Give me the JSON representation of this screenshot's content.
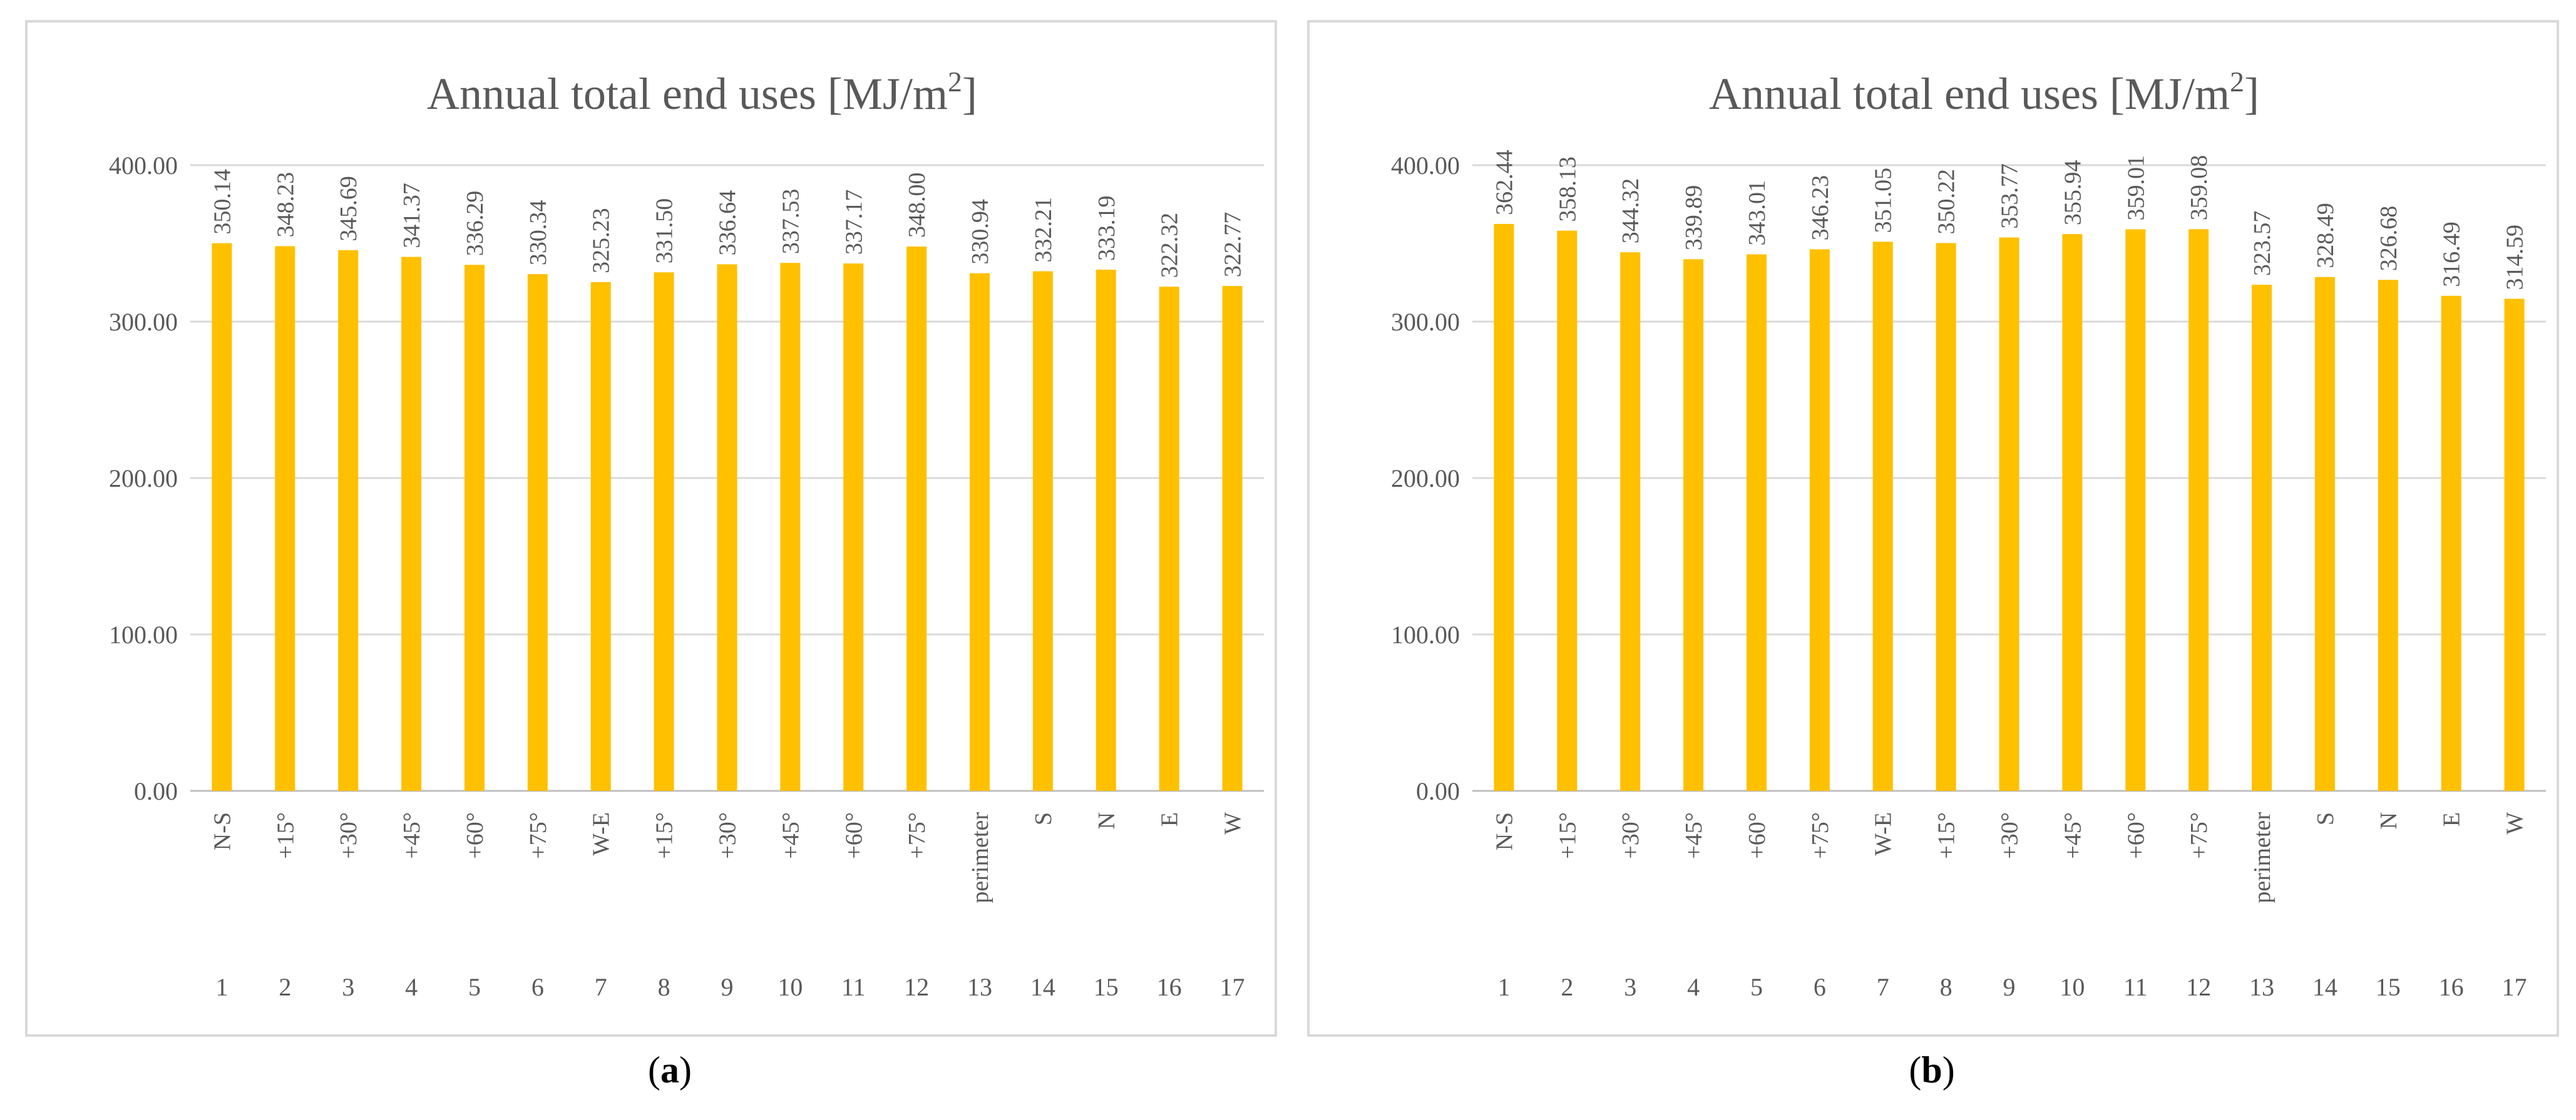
{
  "chart_data": [
    {
      "type": "bar",
      "title": "Annual total end uses [MJ/m",
      "title_sup": "2",
      "title_end": "]",
      "categories": [
        "N-S",
        "+15°",
        "+30°",
        "+45°",
        "+60°",
        "+75°",
        "W-E",
        "+15°",
        "+30°",
        "+45°",
        "+60°",
        "+75°",
        "perimeter",
        "S",
        "N",
        "E",
        "W"
      ],
      "category_index": [
        "1",
        "2",
        "3",
        "4",
        "5",
        "6",
        "7",
        "8",
        "9",
        "10",
        "11",
        "12",
        "13",
        "14",
        "15",
        "16",
        "17"
      ],
      "values": [
        350.14,
        348.23,
        345.69,
        341.37,
        336.29,
        330.34,
        325.23,
        331.5,
        336.64,
        337.53,
        337.17,
        348.0,
        330.94,
        332.21,
        333.19,
        322.32,
        322.77
      ],
      "value_labels": [
        "350.14",
        "348.23",
        "345.69",
        "341.37",
        "336.29",
        "330.34",
        "325.23",
        "331.50",
        "336.64",
        "337.53",
        "337.17",
        "348.00",
        "330.94",
        "332.21",
        "333.19",
        "322.32",
        "322.77"
      ],
      "yticks": [
        0,
        100,
        200,
        300,
        400
      ],
      "ytick_labels": [
        "0.00",
        "100.00",
        "200.00",
        "300.00",
        "400.00"
      ],
      "ylim": [
        0,
        400
      ],
      "xlabel": "",
      "ylabel": "",
      "grid": true,
      "bar_color": "#FFC000",
      "caption_open": "(",
      "caption_letter": "a",
      "caption_close": ")"
    },
    {
      "type": "bar",
      "title": "Annual total end uses [MJ/m",
      "title_sup": "2",
      "title_end": "]",
      "categories": [
        "N-S",
        "+15°",
        "+30°",
        "+45°",
        "+60°",
        "+75°",
        "W-E",
        "+15°",
        "+30°",
        "+45°",
        "+60°",
        "+75°",
        "perimeter",
        "S",
        "N",
        "E",
        "W"
      ],
      "category_index": [
        "1",
        "2",
        "3",
        "4",
        "5",
        "6",
        "7",
        "8",
        "9",
        "10",
        "11",
        "12",
        "13",
        "14",
        "15",
        "16",
        "17"
      ],
      "values": [
        362.44,
        358.13,
        344.32,
        339.89,
        343.01,
        346.23,
        351.05,
        350.22,
        353.77,
        355.94,
        359.01,
        359.08,
        323.57,
        328.49,
        326.68,
        316.49,
        314.59
      ],
      "value_labels": [
        "362.44",
        "358.13",
        "344.32",
        "339.89",
        "343.01",
        "346.23",
        "351.05",
        "350.22",
        "353.77",
        "355.94",
        "359.01",
        "359.08",
        "323.57",
        "328.49",
        "326.68",
        "316.49",
        "314.59"
      ],
      "yticks": [
        0,
        100,
        200,
        300,
        400
      ],
      "ytick_labels": [
        "0.00",
        "100.00",
        "200.00",
        "300.00",
        "400.00"
      ],
      "ylim": [
        0,
        400
      ],
      "xlabel": "",
      "ylabel": "",
      "grid": true,
      "bar_color": "#FFC000",
      "caption_open": "(",
      "caption_letter": "b",
      "caption_close": ")"
    }
  ]
}
